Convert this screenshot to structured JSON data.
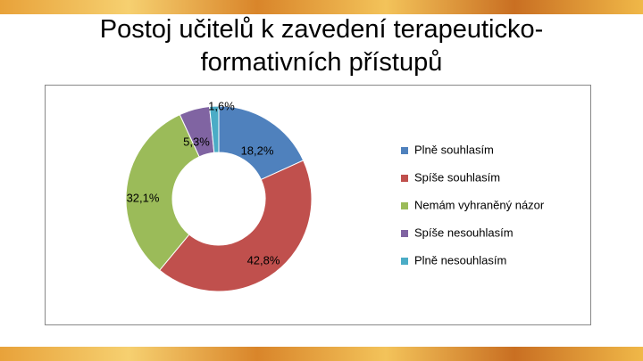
{
  "chart_data": {
    "type": "donut",
    "title": [
      "Postoj učitelů k zavedení terapeuticko-",
      "formativních přístupů"
    ],
    "categories": [
      "Plně souhlasím",
      "Spíše souhlasím",
      "Nemám vyhraněný názor",
      "Spíše nesouhlasím",
      "Plně nesouhlasím"
    ],
    "values": [
      18.2,
      42.8,
      32.1,
      5.3,
      1.6
    ],
    "value_labels": [
      "18,2%",
      "42,8%",
      "32,1%",
      "5,3%",
      "1,6%"
    ],
    "colors": [
      "#4f81bd",
      "#c0504d",
      "#9bbb59",
      "#8064a2",
      "#4bacc6"
    ],
    "legend": "right"
  }
}
